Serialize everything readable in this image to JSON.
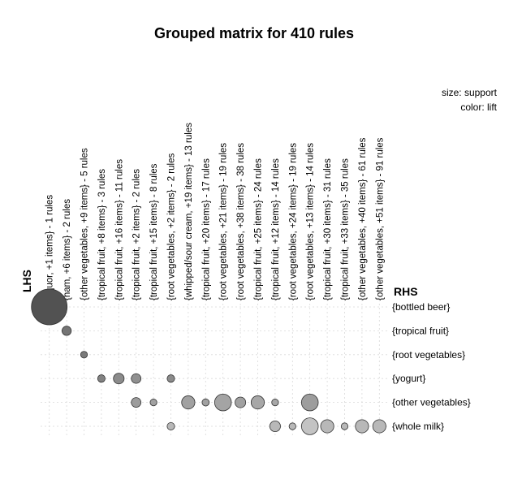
{
  "chart_data": {
    "type": "scatter",
    "title": "Grouped matrix for 410 rules",
    "legend": {
      "size": "size: support",
      "color": "color: lift",
      "placement": "top-right"
    },
    "axis_titles": {
      "lhs": "LHS",
      "rhs": "RHS"
    },
    "lhs_groups": [
      "{liquor, +1 items} - 1 rules",
      "{ham, +6 items} - 2 rules",
      "{other vegetables, +9 items} - 5 rules",
      "{tropical fruit, +8 items} - 3 rules",
      "{tropical fruit, +16 items} - 11 rules",
      "{tropical fruit, +2 items} - 2 rules",
      "{tropical fruit, +15 items} - 8 rules",
      "{root vegetables, +2 items} - 2 rules",
      "{whipped/sour cream, +19 items} - 13 rules",
      "{tropical fruit, +20 items} - 17 rules",
      "{root vegetables, +21 items} - 19 rules",
      "{root vegetables, +38 items} - 38 rules",
      "{tropical fruit, +25 items} - 24 rules",
      "{tropical fruit, +12 items} - 14 rules",
      "{root vegetables, +24 items} - 19 rules",
      "{root vegetables, +13 items} - 14 rules",
      "{tropical fruit, +30 items} - 31 rules",
      "{tropical fruit, +33 items} - 35 rules",
      "{other vegetables, +40 items} - 61 rules",
      "{other vegetables, +51 items} - 91 rules"
    ],
    "rhs_items": [
      "{bottled beer}",
      "{tropical fruit}",
      "{root vegetables}",
      "{yogurt}",
      "{other vegetables}",
      "{whole milk}"
    ],
    "grid": true,
    "points": [
      {
        "lhs": 0,
        "rhs": 0,
        "size": 1.0,
        "color": 0.22
      },
      {
        "lhs": 1,
        "rhs": 1,
        "size": 0.26,
        "color": 0.42
      },
      {
        "lhs": 2,
        "rhs": 2,
        "size": 0.19,
        "color": 0.45
      },
      {
        "lhs": 3,
        "rhs": 3,
        "size": 0.21,
        "color": 0.5
      },
      {
        "lhs": 4,
        "rhs": 3,
        "size": 0.3,
        "color": 0.55
      },
      {
        "lhs": 5,
        "rhs": 3,
        "size": 0.27,
        "color": 0.58
      },
      {
        "lhs": 7,
        "rhs": 3,
        "size": 0.21,
        "color": 0.55
      },
      {
        "lhs": 5,
        "rhs": 4,
        "size": 0.27,
        "color": 0.65
      },
      {
        "lhs": 6,
        "rhs": 4,
        "size": 0.19,
        "color": 0.68
      },
      {
        "lhs": 8,
        "rhs": 4,
        "size": 0.37,
        "color": 0.68
      },
      {
        "lhs": 9,
        "rhs": 4,
        "size": 0.2,
        "color": 0.68
      },
      {
        "lhs": 10,
        "rhs": 4,
        "size": 0.47,
        "color": 0.7
      },
      {
        "lhs": 11,
        "rhs": 4,
        "size": 0.3,
        "color": 0.68
      },
      {
        "lhs": 12,
        "rhs": 4,
        "size": 0.37,
        "color": 0.72
      },
      {
        "lhs": 13,
        "rhs": 4,
        "size": 0.19,
        "color": 0.72
      },
      {
        "lhs": 15,
        "rhs": 4,
        "size": 0.47,
        "color": 0.66
      },
      {
        "lhs": 7,
        "rhs": 5,
        "size": 0.21,
        "color": 0.82
      },
      {
        "lhs": 13,
        "rhs": 5,
        "size": 0.3,
        "color": 0.82
      },
      {
        "lhs": 14,
        "rhs": 5,
        "size": 0.19,
        "color": 0.82
      },
      {
        "lhs": 15,
        "rhs": 5,
        "size": 0.47,
        "color": 0.88
      },
      {
        "lhs": 16,
        "rhs": 5,
        "size": 0.37,
        "color": 0.82
      },
      {
        "lhs": 17,
        "rhs": 5,
        "size": 0.19,
        "color": 0.82
      },
      {
        "lhs": 18,
        "rhs": 5,
        "size": 0.37,
        "color": 0.82
      },
      {
        "lhs": 19,
        "rhs": 5,
        "size": 0.37,
        "color": 0.82
      }
    ]
  }
}
